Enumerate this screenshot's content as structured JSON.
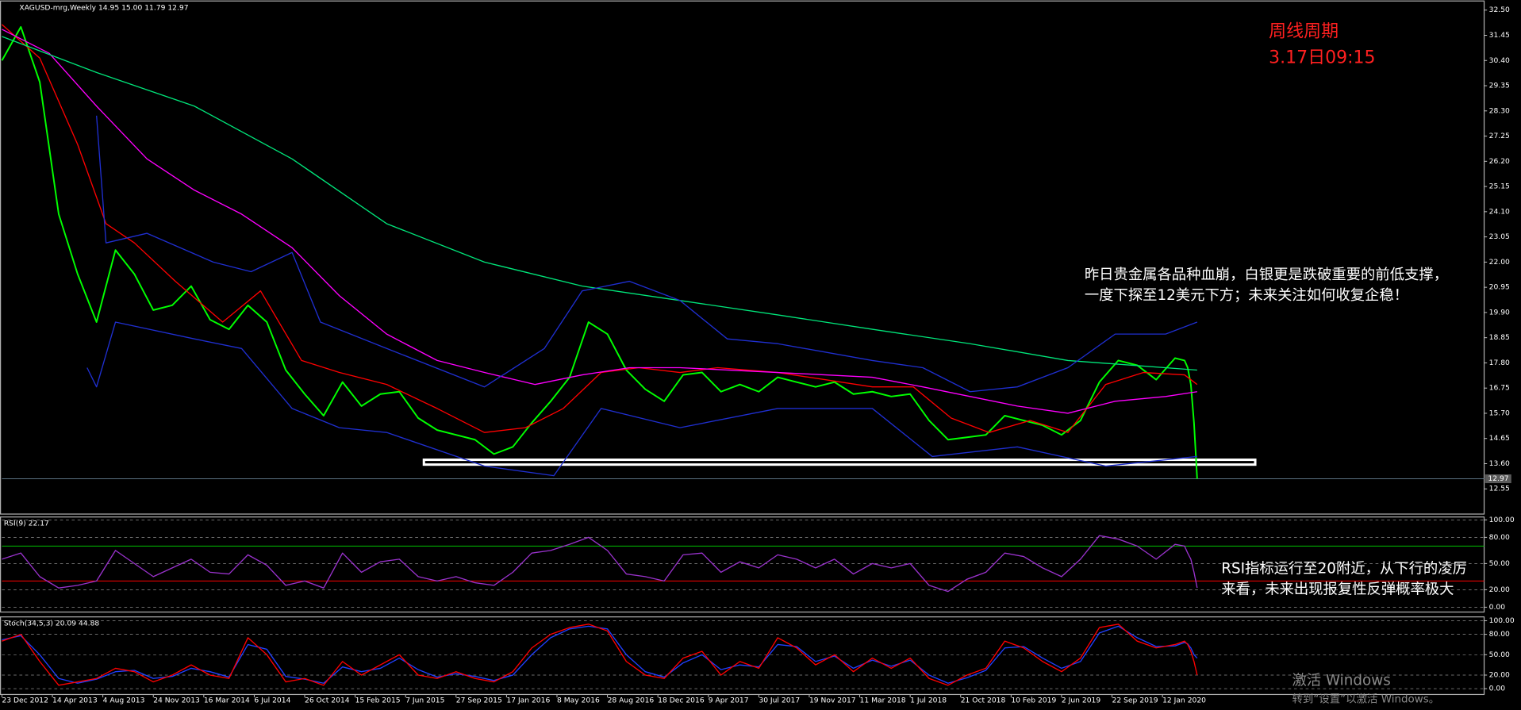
{
  "chart_data": [
    {
      "type": "line",
      "title": "XAGUSD-mrg,Weekly  14.95 15.00 11.79 12.97",
      "xlim": [
        0,
        470
      ],
      "ylim": [
        11.5,
        32.8
      ],
      "grid": false,
      "yticks": [
        {
          "value": 32.5,
          "label": "32.50"
        },
        {
          "value": 31.45,
          "label": "31.45"
        },
        {
          "value": 30.4,
          "label": "30.40"
        },
        {
          "value": 29.35,
          "label": "29.35"
        },
        {
          "value": 28.3,
          "label": "28.30"
        },
        {
          "value": 27.25,
          "label": "27.25"
        },
        {
          "value": 26.2,
          "label": "26.20"
        },
        {
          "value": 25.15,
          "label": "25.15"
        },
        {
          "value": 24.1,
          "label": "24.10"
        },
        {
          "value": 23.05,
          "label": "23.05"
        },
        {
          "value": 22,
          "label": "22.00"
        },
        {
          "value": 20.95,
          "label": "20.95"
        },
        {
          "value": 19.9,
          "label": "19.90"
        },
        {
          "value": 18.85,
          "label": "18.85"
        },
        {
          "value": 17.8,
          "label": "17.80"
        },
        {
          "value": 16.75,
          "label": "16.75"
        },
        {
          "value": 15.7,
          "label": "15.70"
        },
        {
          "value": 14.65,
          "label": "14.65"
        },
        {
          "value": 13.6,
          "label": "13.60"
        },
        {
          "value": 12.55,
          "label": "12.55"
        }
      ],
      "xticks": [
        {
          "value": 0,
          "label": "23 Dec 2012"
        },
        {
          "value": 16,
          "label": "14 Apr 2013"
        },
        {
          "value": 32,
          "label": "4 Aug 2013"
        },
        {
          "value": 48,
          "label": "24 Nov 2013"
        },
        {
          "value": 64,
          "label": "16 Mar 2014"
        },
        {
          "value": 80,
          "label": "6 Jul 2014"
        },
        {
          "value": 96,
          "label": "26 Oct 2014"
        },
        {
          "value": 112,
          "label": "15 Feb 2015"
        },
        {
          "value": 128,
          "label": "7 Jun 2015"
        },
        {
          "value": 144,
          "label": "27 Sep 2015"
        },
        {
          "value": 160,
          "label": "17 Jan 2016"
        },
        {
          "value": 176,
          "label": "8 May 2016"
        },
        {
          "value": 192,
          "label": "28 Aug 2016"
        },
        {
          "value": 208,
          "label": "18 Dec 2016"
        },
        {
          "value": 224,
          "label": "9 Apr 2017"
        },
        {
          "value": 240,
          "label": "30 Jul 2017"
        },
        {
          "value": 256,
          "label": "19 Nov 2017"
        },
        {
          "value": 272,
          "label": "11 Mar 2018"
        },
        {
          "value": 288,
          "label": "1 Jul 2018"
        },
        {
          "value": 304,
          "label": "21 Oct 2018"
        },
        {
          "value": 320,
          "label": "10 Feb 2019"
        },
        {
          "value": 336,
          "label": "2 Jun 2019"
        },
        {
          "value": 352,
          "label": "22 Sep 2019"
        },
        {
          "value": 368,
          "label": "12 Jan 2020"
        }
      ],
      "price_line": {
        "value": 12.97,
        "label": "12.97"
      },
      "series": [
        {
          "color": "#00ff00",
          "x": [
            0,
            6,
            12,
            18,
            24,
            30,
            36,
            42,
            48,
            54,
            60,
            66,
            72,
            78,
            84,
            90,
            96,
            102,
            108,
            114,
            120,
            126,
            132,
            138,
            144,
            150,
            156,
            162,
            168,
            174,
            180,
            186,
            192,
            198,
            204,
            210,
            216,
            222,
            228,
            234,
            240,
            246,
            252,
            258,
            264,
            270,
            276,
            282,
            288,
            294,
            300,
            306,
            312,
            318,
            324,
            330,
            336,
            342,
            348,
            354,
            360,
            366,
            372,
            375,
            376,
            377,
            378,
            379
          ],
          "values": [
            30.4,
            31.8,
            29.5,
            24,
            21.5,
            19.5,
            22.5,
            21.5,
            20,
            20.2,
            21,
            19.6,
            19.2,
            20.2,
            19.5,
            17.5,
            16.5,
            15.6,
            17.0,
            16.0,
            16.5,
            16.6,
            15.5,
            15.0,
            14.8,
            14.6,
            14.0,
            14.3,
            15.3,
            16.2,
            17.2,
            19.5,
            19.0,
            17.5,
            16.7,
            16.2,
            17.3,
            17.4,
            16.6,
            16.9,
            16.6,
            17.2,
            17.0,
            16.8,
            17.0,
            16.5,
            16.6,
            16.4,
            16.5,
            15.4,
            14.6,
            14.7,
            14.8,
            15.6,
            15.4,
            15.2,
            14.8,
            15.4,
            17.0,
            17.9,
            17.7,
            17.1,
            18.0,
            17.9,
            17.6,
            16.9,
            15.3,
            12.97
          ]
        },
        {
          "color": "#ff0000",
          "x": [
            0,
            12,
            24,
            33,
            42,
            55,
            70,
            82,
            95,
            107,
            122,
            138,
            153,
            166,
            178,
            190,
            202,
            215,
            227,
            246,
            276,
            289,
            301,
            313,
            326,
            338,
            350,
            362,
            375,
            379
          ],
          "values": [
            31.9,
            30.5,
            26.9,
            23.6,
            22.8,
            21.2,
            19.5,
            20.8,
            17.9,
            17.4,
            16.9,
            15.9,
            14.9,
            15.1,
            15.9,
            17.4,
            17.6,
            17.4,
            17.6,
            17.4,
            16.8,
            16.8,
            15.5,
            14.9,
            15.4,
            14.9,
            16.9,
            17.4,
            17.3,
            16.9
          ]
        },
        {
          "color": "#ff00ff",
          "x": [
            0,
            15,
            30,
            46,
            61,
            76,
            92,
            107,
            122,
            138,
            153,
            169,
            184,
            199,
            215,
            246,
            276,
            292,
            307,
            322,
            338,
            353,
            369,
            379
          ],
          "values": [
            31.7,
            30.7,
            28.5,
            26.3,
            25.0,
            24.0,
            22.6,
            20.6,
            19.0,
            17.9,
            17.4,
            16.9,
            17.3,
            17.6,
            17.6,
            17.4,
            17.2,
            16.8,
            16.4,
            16.0,
            15.7,
            16.2,
            16.4,
            16.6
          ]
        },
        {
          "color": "#00e57a",
          "x": [
            0,
            30,
            61,
            92,
            122,
            153,
            184,
            215,
            246,
            276,
            307,
            338,
            379
          ],
          "values": [
            31.4,
            29.9,
            28.5,
            26.3,
            23.6,
            22.0,
            21.0,
            20.4,
            19.8,
            19.2,
            18.6,
            17.9,
            17.5
          ]
        },
        {
          "color": "#1f2fd0",
          "x": [
            30,
            33,
            46,
            67,
            79,
            92,
            101,
            122,
            153,
            172,
            184,
            199,
            215,
            230,
            246,
            276,
            292,
            307,
            322,
            338,
            353,
            369,
            379
          ],
          "values": [
            28.1,
            22.8,
            23.2,
            22.0,
            21.6,
            22.4,
            19.5,
            18.4,
            16.8,
            18.4,
            20.8,
            21.2,
            20.4,
            18.8,
            18.6,
            17.9,
            17.6,
            16.6,
            16.8,
            17.6,
            19.0,
            19.0,
            19.5
          ]
        },
        {
          "color": "#1f2fd0",
          "x": [
            27,
            30,
            36,
            61,
            76,
            92,
            107,
            122,
            153,
            175,
            190,
            215,
            246,
            276,
            295,
            322,
            350,
            379
          ],
          "values": [
            17.6,
            16.8,
            19.5,
            18.8,
            18.4,
            15.9,
            15.1,
            14.9,
            13.5,
            13.1,
            15.9,
            15.1,
            15.9,
            15.9,
            13.9,
            14.3,
            13.5,
            13.9
          ]
        }
      ]
    },
    {
      "type": "line",
      "title": "RSI(9) 22.17",
      "xlim": [
        0,
        470
      ],
      "ylim": [
        0,
        100
      ],
      "grid": true,
      "yticks": [
        {
          "value": 100,
          "label": "100.00"
        },
        {
          "value": 80,
          "label": "80.00"
        },
        {
          "value": 50,
          "label": "50.00"
        },
        {
          "value": 20,
          "label": "20.00"
        },
        {
          "value": 0,
          "label": "0.00"
        }
      ],
      "levels": [
        {
          "value": 70,
          "color": "#00c000"
        },
        {
          "value": 30,
          "color": "#ff0000"
        }
      ],
      "series": [
        {
          "color": "#9932cc",
          "x": [
            0,
            6,
            12,
            18,
            24,
            30,
            36,
            42,
            48,
            54,
            60,
            66,
            72,
            78,
            84,
            90,
            96,
            102,
            108,
            114,
            120,
            126,
            132,
            138,
            144,
            150,
            156,
            162,
            168,
            174,
            180,
            186,
            192,
            198,
            204,
            210,
            216,
            222,
            228,
            234,
            240,
            246,
            252,
            258,
            264,
            270,
            276,
            282,
            288,
            294,
            300,
            306,
            312,
            318,
            324,
            330,
            336,
            342,
            348,
            354,
            360,
            366,
            372,
            375,
            376,
            377,
            378,
            379
          ],
          "values": [
            55,
            62,
            35,
            22,
            25,
            30,
            65,
            50,
            35,
            45,
            55,
            40,
            38,
            60,
            48,
            25,
            30,
            22,
            62,
            40,
            52,
            55,
            35,
            30,
            35,
            28,
            25,
            40,
            62,
            65,
            72,
            80,
            65,
            38,
            35,
            30,
            60,
            62,
            40,
            52,
            45,
            60,
            55,
            45,
            55,
            38,
            50,
            45,
            50,
            25,
            18,
            32,
            40,
            62,
            58,
            45,
            35,
            55,
            82,
            78,
            70,
            55,
            72,
            70,
            62,
            55,
            40,
            22.17
          ]
        }
      ]
    },
    {
      "type": "line",
      "title": "Stoch(34,5,3) 20.09 44.88",
      "xlim": [
        0,
        470
      ],
      "ylim": [
        0,
        100
      ],
      "grid": true,
      "yticks": [
        {
          "value": 100,
          "label": "100.00"
        },
        {
          "value": 80,
          "label": "80.00"
        },
        {
          "value": 50,
          "label": "50.00"
        },
        {
          "value": 20,
          "label": "20.00"
        },
        {
          "value": 0,
          "label": "0.00"
        }
      ],
      "series": [
        {
          "color": "#2040ff",
          "x": [
            0,
            6,
            12,
            18,
            24,
            30,
            36,
            42,
            48,
            54,
            60,
            66,
            72,
            78,
            84,
            90,
            96,
            102,
            108,
            114,
            120,
            126,
            132,
            138,
            144,
            150,
            156,
            162,
            168,
            174,
            180,
            186,
            192,
            198,
            204,
            210,
            216,
            222,
            228,
            234,
            240,
            246,
            252,
            258,
            264,
            270,
            276,
            282,
            288,
            294,
            300,
            306,
            312,
            318,
            324,
            330,
            336,
            342,
            348,
            354,
            360,
            366,
            372,
            375,
            376,
            377,
            378,
            379
          ],
          "values": [
            72,
            78,
            50,
            15,
            8,
            14,
            25,
            27,
            15,
            18,
            30,
            25,
            17,
            65,
            58,
            18,
            14,
            8,
            32,
            25,
            30,
            45,
            28,
            17,
            22,
            18,
            12,
            20,
            50,
            75,
            88,
            92,
            88,
            50,
            25,
            17,
            38,
            50,
            28,
            35,
            32,
            65,
            62,
            40,
            48,
            30,
            42,
            33,
            42,
            20,
            8,
            16,
            27,
            60,
            62,
            45,
            30,
            40,
            82,
            92,
            75,
            62,
            63,
            68,
            66,
            60,
            50,
            44.88
          ]
        },
        {
          "color": "#ff0000",
          "x": [
            0,
            6,
            12,
            18,
            24,
            30,
            36,
            42,
            48,
            54,
            60,
            66,
            72,
            78,
            84,
            90,
            96,
            102,
            108,
            114,
            120,
            126,
            132,
            138,
            144,
            150,
            156,
            162,
            168,
            174,
            180,
            186,
            192,
            198,
            204,
            210,
            216,
            222,
            228,
            234,
            240,
            246,
            252,
            258,
            264,
            270,
            276,
            282,
            288,
            294,
            300,
            306,
            312,
            318,
            324,
            330,
            336,
            342,
            348,
            354,
            360,
            366,
            372,
            375,
            376,
            377,
            378,
            379
          ],
          "values": [
            70,
            80,
            40,
            5,
            10,
            15,
            30,
            25,
            10,
            20,
            35,
            20,
            15,
            75,
            50,
            10,
            15,
            5,
            40,
            20,
            35,
            50,
            20,
            15,
            25,
            15,
            10,
            25,
            60,
            80,
            90,
            95,
            85,
            40,
            20,
            15,
            45,
            55,
            20,
            40,
            30,
            75,
            60,
            35,
            50,
            25,
            45,
            30,
            45,
            15,
            5,
            20,
            30,
            70,
            60,
            40,
            25,
            45,
            90,
            95,
            70,
            60,
            65,
            70,
            65,
            55,
            40,
            20.09
          ]
        }
      ]
    }
  ],
  "annotations": {
    "period": "周线周期",
    "time": "3.17日09:15",
    "price_note": [
      "昨日贵金属各品种血崩，白银更是跌破重要的前低支撑，",
      "一度下探至12美元下方；未来关注如何收复企稳！"
    ],
    "rsi_note": [
      "RSI指标运行至20附近，从下行的凌厉",
      "来看，未来出现报复性反弹概率极大"
    ]
  },
  "watermark": {
    "title": "激活 Windows",
    "subtitle": "转到“设置”以激活 Windows。"
  }
}
